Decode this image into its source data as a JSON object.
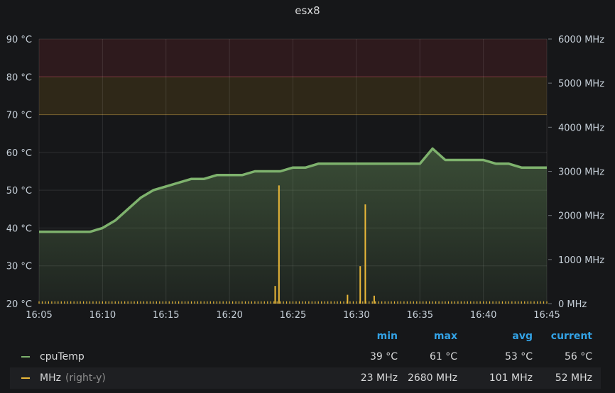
{
  "panel": {
    "title": "esx8"
  },
  "chart_data": {
    "type": "line",
    "x_ticks": [
      "16:05",
      "16:10",
      "16:15",
      "16:20",
      "16:25",
      "16:30",
      "16:35",
      "16:40",
      "16:45"
    ],
    "y_left": {
      "unit": "°C",
      "min": 20,
      "max": 90,
      "ticks": [
        "20 °C",
        "30 °C",
        "40 °C",
        "50 °C",
        "60 °C",
        "70 °C",
        "80 °C",
        "90 °C"
      ]
    },
    "y_right": {
      "unit": "MHz",
      "min": 0,
      "max": 6000,
      "ticks": [
        "0 MHz",
        "1000 MHz",
        "2000 MHz",
        "3000 MHz",
        "4000 MHz",
        "5000 MHz",
        "6000 MHz"
      ]
    },
    "thresholds": [
      {
        "from": 70,
        "to": 80,
        "color": "#e5a81a"
      },
      {
        "from": 80,
        "to": 90,
        "color": "#e02f44"
      }
    ],
    "grid": true,
    "series": [
      {
        "name": "cpuTemp",
        "axis": "left",
        "color": "#7eb26d",
        "x_minutes": [
          0,
          1,
          2,
          3,
          4,
          5,
          6,
          7,
          8,
          9,
          10,
          11,
          12,
          13,
          14,
          15,
          16,
          17,
          18,
          19,
          20,
          21,
          22,
          23,
          24,
          25,
          26,
          27,
          28,
          29,
          30,
          31,
          32,
          33,
          34,
          35,
          36,
          37,
          38,
          39,
          40
        ],
        "values": [
          39,
          39,
          39,
          39,
          39,
          40,
          42,
          45,
          48,
          50,
          51,
          52,
          53,
          53,
          54,
          54,
          54,
          55,
          55,
          55,
          56,
          56,
          57,
          57,
          57,
          57,
          57,
          57,
          57,
          57,
          57,
          61,
          58,
          58,
          58,
          58,
          57,
          57,
          56,
          56,
          56
        ]
      },
      {
        "name": "MHz",
        "axis": "right",
        "extra": "(right-y)",
        "color": "#eab839",
        "spikes": [
          {
            "x_minutes": 18.6,
            "value": 400
          },
          {
            "x_minutes": 18.9,
            "value": 2680
          },
          {
            "x_minutes": 24.3,
            "value": 200
          },
          {
            "x_minutes": 25.3,
            "value": 850
          },
          {
            "x_minutes": 25.7,
            "value": 2250
          },
          {
            "x_minutes": 26.4,
            "value": 180
          }
        ],
        "baseline": 52
      }
    ]
  },
  "legend": {
    "headers": [
      "min",
      "max",
      "avg",
      "current"
    ],
    "rows": [
      {
        "name": "cpuTemp",
        "extra": "",
        "color": "#7eb26d",
        "min": "39 °C",
        "max": "61 °C",
        "avg": "53 °C",
        "current": "56 °C"
      },
      {
        "name": "MHz",
        "extra": "(right-y)",
        "color": "#eab839",
        "min": "23 MHz",
        "max": "2680 MHz",
        "avg": "101 MHz",
        "current": "52 MHz"
      }
    ]
  }
}
